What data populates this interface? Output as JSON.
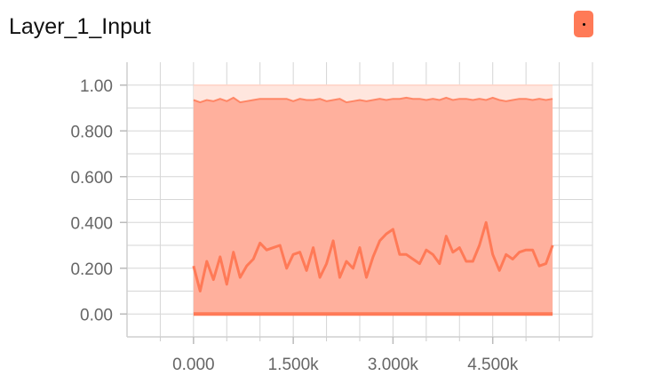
{
  "header": {
    "title": "Layer_1_Input"
  },
  "colors": {
    "accent": "#ff7a57",
    "band_fill": "#ffad99",
    "band_light": "#ffe6de",
    "grid": "#d6d6d6"
  },
  "icons": {
    "expand": "expand-dot-icon"
  },
  "chart_data": {
    "type": "area",
    "title": "Layer_1_Input",
    "xlabel": "",
    "ylabel": "",
    "xlim": [
      -1000,
      6000
    ],
    "ylim": [
      -0.1,
      1.1
    ],
    "x_ticks": [
      0,
      1500,
      3000,
      4500
    ],
    "x_tick_labels": [
      "0.000",
      "1.500k",
      "3.000k",
      "4.500k"
    ],
    "y_ticks": [
      0,
      0.2,
      0.4,
      0.6,
      0.8,
      1.0
    ],
    "y_tick_labels": [
      "0.00",
      "0.200",
      "0.400",
      "0.600",
      "0.800",
      "1.00"
    ],
    "grid": true,
    "x": [
      0,
      100,
      200,
      300,
      400,
      500,
      600,
      700,
      800,
      900,
      1000,
      1100,
      1200,
      1300,
      1400,
      1500,
      1600,
      1700,
      1800,
      1900,
      2000,
      2100,
      2200,
      2300,
      2400,
      2500,
      2600,
      2700,
      2800,
      2900,
      3000,
      3100,
      3200,
      3300,
      3400,
      3500,
      3600,
      3700,
      3800,
      3900,
      4000,
      4100,
      4200,
      4300,
      4400,
      4500,
      4600,
      4700,
      4800,
      4900,
      5000,
      5100,
      5200,
      5300,
      5400
    ],
    "series": [
      {
        "role": "max",
        "values": [
          1.0,
          1.0,
          1.0,
          1.0,
          1.0,
          1.0,
          1.0,
          1.0,
          1.0,
          1.0,
          1.0,
          1.0,
          1.0,
          1.0,
          1.0,
          1.0,
          1.0,
          1.0,
          1.0,
          1.0,
          1.0,
          1.0,
          1.0,
          1.0,
          1.0,
          1.0,
          1.0,
          1.0,
          1.0,
          1.0,
          1.0,
          1.0,
          1.0,
          1.0,
          1.0,
          1.0,
          1.0,
          1.0,
          1.0,
          1.0,
          1.0,
          1.0,
          1.0,
          1.0,
          1.0,
          1.0,
          1.0,
          1.0,
          1.0,
          1.0,
          1.0,
          1.0,
          1.0,
          1.0,
          1.0
        ]
      },
      {
        "role": "upper",
        "values": [
          0.935,
          0.925,
          0.935,
          0.93,
          0.94,
          0.93,
          0.945,
          0.925,
          0.93,
          0.935,
          0.94,
          0.94,
          0.94,
          0.94,
          0.94,
          0.93,
          0.94,
          0.935,
          0.935,
          0.94,
          0.93,
          0.935,
          0.94,
          0.925,
          0.93,
          0.935,
          0.93,
          0.935,
          0.94,
          0.935,
          0.94,
          0.94,
          0.945,
          0.94,
          0.94,
          0.935,
          0.94,
          0.935,
          0.945,
          0.935,
          0.94,
          0.94,
          0.935,
          0.94,
          0.935,
          0.945,
          0.935,
          0.93,
          0.935,
          0.94,
          0.94,
          0.935,
          0.94,
          0.935,
          0.94
        ]
      },
      {
        "role": "middle",
        "values": [
          0.21,
          0.1,
          0.23,
          0.15,
          0.25,
          0.13,
          0.27,
          0.16,
          0.21,
          0.24,
          0.31,
          0.28,
          0.29,
          0.3,
          0.2,
          0.26,
          0.27,
          0.19,
          0.29,
          0.16,
          0.22,
          0.32,
          0.16,
          0.23,
          0.2,
          0.29,
          0.16,
          0.25,
          0.32,
          0.35,
          0.37,
          0.26,
          0.26,
          0.24,
          0.22,
          0.28,
          0.26,
          0.22,
          0.34,
          0.27,
          0.29,
          0.23,
          0.23,
          0.3,
          0.4,
          0.26,
          0.19,
          0.26,
          0.24,
          0.27,
          0.28,
          0.28,
          0.21,
          0.22,
          0.3
        ]
      },
      {
        "role": "min",
        "values": [
          0.0,
          0.0,
          0.0,
          0.0,
          0.0,
          0.0,
          0.0,
          0.0,
          0.0,
          0.0,
          0.0,
          0.0,
          0.0,
          0.0,
          0.0,
          0.0,
          0.0,
          0.0,
          0.0,
          0.0,
          0.0,
          0.0,
          0.0,
          0.0,
          0.0,
          0.0,
          0.0,
          0.0,
          0.0,
          0.0,
          0.0,
          0.0,
          0.0,
          0.0,
          0.0,
          0.0,
          0.0,
          0.0,
          0.0,
          0.0,
          0.0,
          0.0,
          0.0,
          0.0,
          0.0,
          0.0,
          0.0,
          0.0,
          0.0,
          0.0,
          0.0,
          0.0,
          0.0,
          0.0,
          0.0
        ]
      }
    ]
  }
}
